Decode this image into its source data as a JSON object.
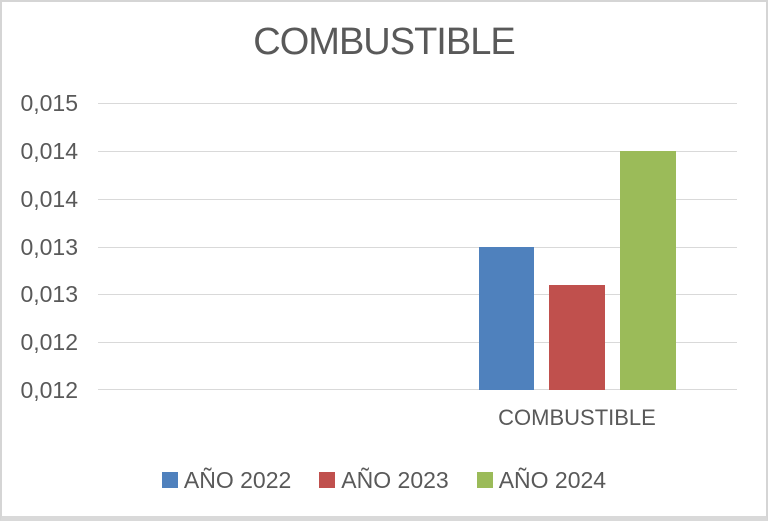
{
  "chart_data": {
    "type": "bar",
    "title": "COMBUSTIBLE",
    "categories": [
      "COMBUSTIBLE"
    ],
    "series": [
      {
        "name": "AÑO 2022",
        "color": "#4F81BD",
        "values": [
          0.013
        ]
      },
      {
        "name": "AÑO 2023",
        "color": "#C0504D",
        "values": [
          0.0126
        ]
      },
      {
        "name": "AÑO 2024",
        "color": "#9BBB59",
        "values": [
          0.014
        ]
      }
    ],
    "ylim": [
      0.0115,
      0.0145
    ],
    "y_ticks": [
      {
        "value": 0.0145,
        "label": "0,015"
      },
      {
        "value": 0.014,
        "label": "0,014"
      },
      {
        "value": 0.0135,
        "label": "0,014"
      },
      {
        "value": 0.013,
        "label": "0,013"
      },
      {
        "value": 0.0125,
        "label": "0,013"
      },
      {
        "value": 0.012,
        "label": "0,012"
      },
      {
        "value": 0.0115,
        "label": "0,012"
      }
    ],
    "grid": true,
    "legend_position": "bottom",
    "colors": {
      "text": "#595959",
      "gridline": "#D9D9D9"
    }
  }
}
